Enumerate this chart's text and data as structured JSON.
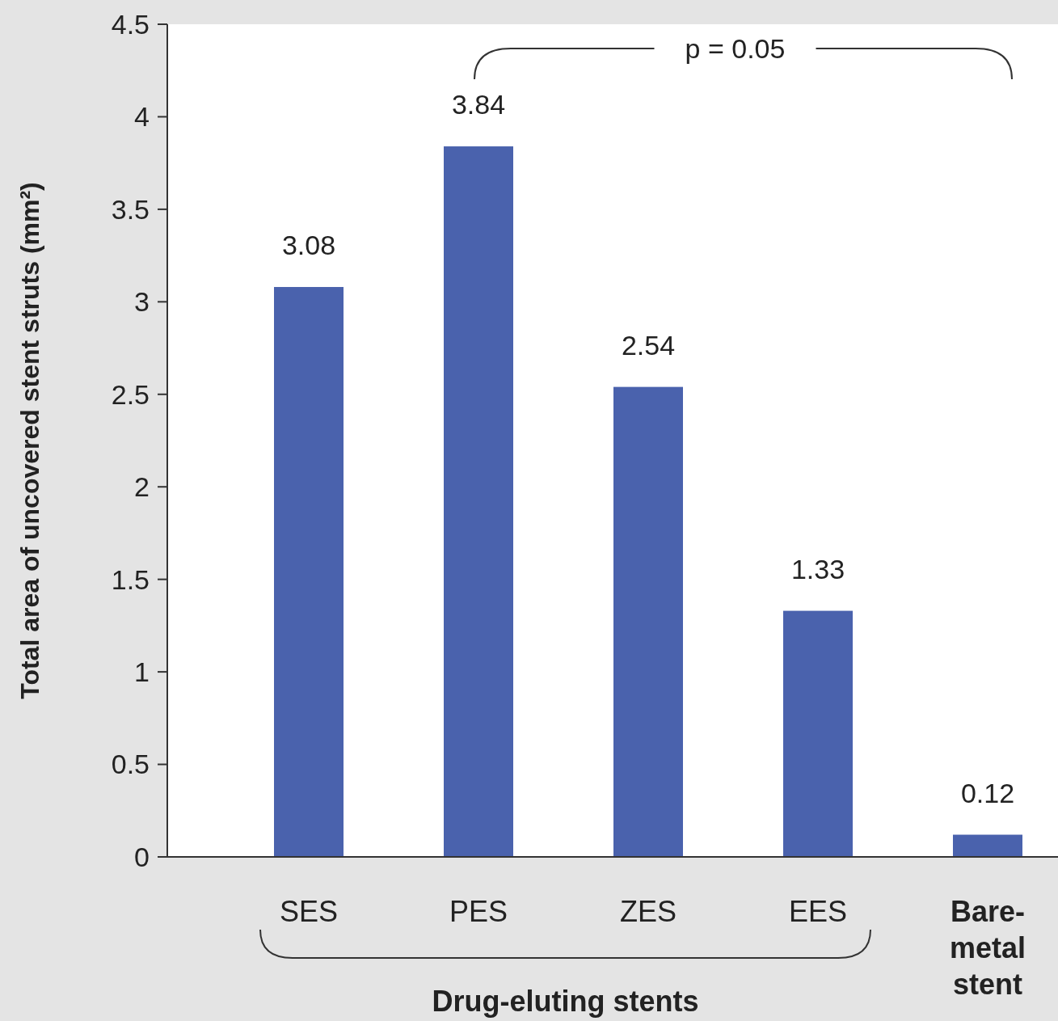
{
  "chart_data": {
    "type": "bar",
    "ylabel": "Total area of uncovered stent struts (mm²)",
    "categories": [
      "SES",
      "PES",
      "ZES",
      "EES",
      "Bare-metal stent"
    ],
    "values": [
      3.08,
      3.84,
      2.54,
      1.33,
      0.12
    ],
    "color": "#4a62ad",
    "ylim": [
      0,
      4.5
    ],
    "yticks": [
      0,
      0.5,
      1,
      1.5,
      2,
      2.5,
      3,
      3.5,
      4,
      4.5
    ],
    "grid": false,
    "data_labels": true,
    "annotations": [
      "p = 0.05",
      "Drug-eluting stents"
    ]
  }
}
